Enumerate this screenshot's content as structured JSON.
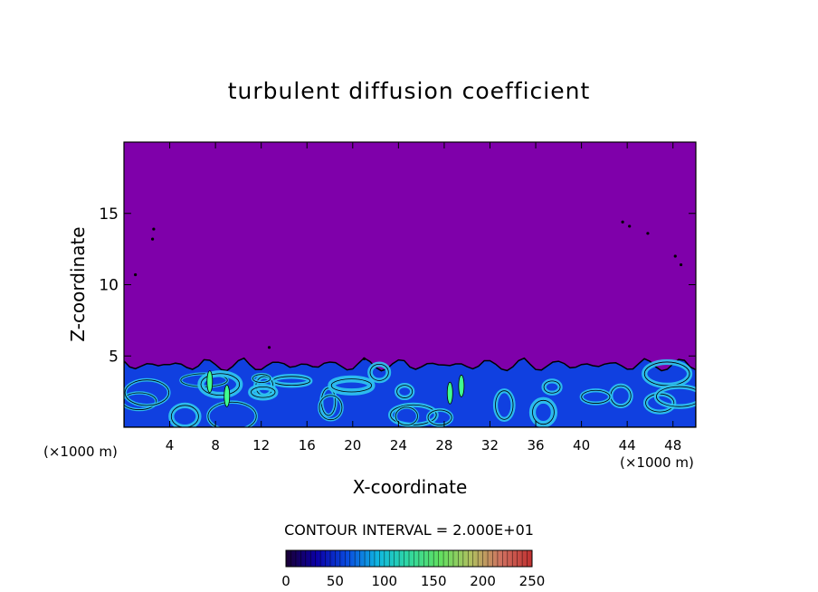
{
  "chart_data": {
    "type": "heatmap",
    "title": "turbulent diffusion coefficient",
    "xlabel": "X-coordinate",
    "ylabel": "Z-coordinate",
    "x_unit": "(×1000 m)",
    "z_unit": "(×1000 m)",
    "xlim": [
      0,
      50
    ],
    "zlim": [
      0,
      20
    ],
    "x_ticks": [
      4,
      8,
      12,
      16,
      20,
      24,
      28,
      32,
      36,
      40,
      44,
      48
    ],
    "z_ticks": [
      5,
      10,
      15
    ],
    "contour_interval_text": "CONTOUR INTERVAL = 2.000E+01",
    "colorbar": {
      "range": [
        0,
        250
      ],
      "tick_values": [
        0,
        50,
        100,
        150,
        200,
        250
      ],
      "colors": [
        "#1a0033",
        "#0b00a8",
        "#0a4ce0",
        "#10b8e0",
        "#30d8a0",
        "#60e060",
        "#b0c060",
        "#d07060",
        "#c03030"
      ]
    },
    "background_color": "#7f00aa",
    "turbulent_layer_top_km": 5,
    "colors": {
      "low": "#7f00aa",
      "mid": "#1040e0",
      "high": "#30c8f0",
      "peak": "#40ff90"
    }
  }
}
